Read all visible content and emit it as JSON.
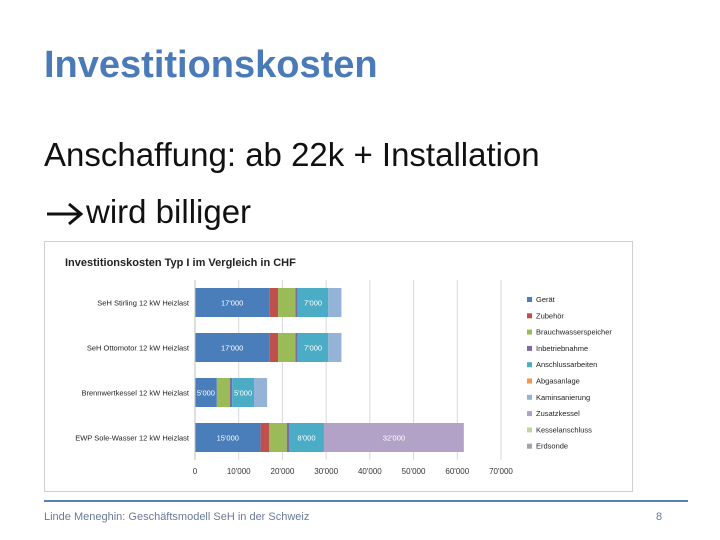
{
  "slide": {
    "title": "Investitionskosten",
    "line1": "Anschaffung: ab 22k + Installation",
    "line2": "wird billiger",
    "footer": "Linde Meneghin: Geschäftsmodell SeH in der Schweiz",
    "page_number": "8"
  },
  "colors": {
    "title": "#4a7ab8",
    "footer_rule": "#5b7fb5"
  },
  "chart_data": {
    "type": "bar",
    "orientation": "horizontal",
    "stacked": true,
    "title": "Investitionskosten Typ I im Vergleich in CHF",
    "categories": [
      "SeH Stirling 12 kW Heizlast",
      "SeH Ottomotor 12 kW Heizlast",
      "Brennwertkessel 12 kW Heizlast",
      "EWP Sole-Wasser 12 kW Heizlast"
    ],
    "xlim": [
      0,
      70000
    ],
    "xticks": [
      "0",
      "10'000",
      "20'000",
      "30'000",
      "40'000",
      "50'000",
      "60'000",
      "70'000"
    ],
    "legend_position": "right",
    "series": [
      {
        "name": "Gerät",
        "color": "#4a7ebb",
        "values": [
          17000,
          17000,
          5000,
          15000
        ],
        "labels": [
          "17'000",
          "17'000",
          "5'000",
          "15'000"
        ]
      },
      {
        "name": "Zubehör",
        "color": "#c0504d",
        "values": [
          2000,
          2000,
          0,
          2000
        ]
      },
      {
        "name": "Brauchwasserspeicher",
        "color": "#9bbb59",
        "values": [
          4000,
          4000,
          3000,
          4000
        ]
      },
      {
        "name": "Inbetriebnahme",
        "color": "#7f6aa2",
        "values": [
          500,
          500,
          500,
          500
        ]
      },
      {
        "name": "Anschlussarbeiten",
        "color": "#4bacc6",
        "values": [
          7000,
          7000,
          5000,
          8000
        ],
        "labels": [
          "7'000",
          "7'000",
          "5'000",
          "8'000"
        ]
      },
      {
        "name": "Abgasanlage",
        "color": "#f79646",
        "values": [
          0,
          0,
          0,
          0
        ]
      },
      {
        "name": "Kaminsanierung",
        "color": "#95b3d7",
        "values": [
          3000,
          3000,
          3000,
          0
        ]
      },
      {
        "name": "Zusatzkessel",
        "color": "#b3a2c7",
        "values": [
          0,
          0,
          0,
          32000
        ],
        "labels": [
          "",
          "",
          "",
          "32'000"
        ]
      },
      {
        "name": "Kesselanschluss",
        "color": "#c3d69b",
        "values": [
          0,
          0,
          0,
          0
        ]
      },
      {
        "name": "Erdsonde",
        "color": "#a5a5a5",
        "values": [
          0,
          0,
          0,
          0
        ]
      }
    ]
  }
}
